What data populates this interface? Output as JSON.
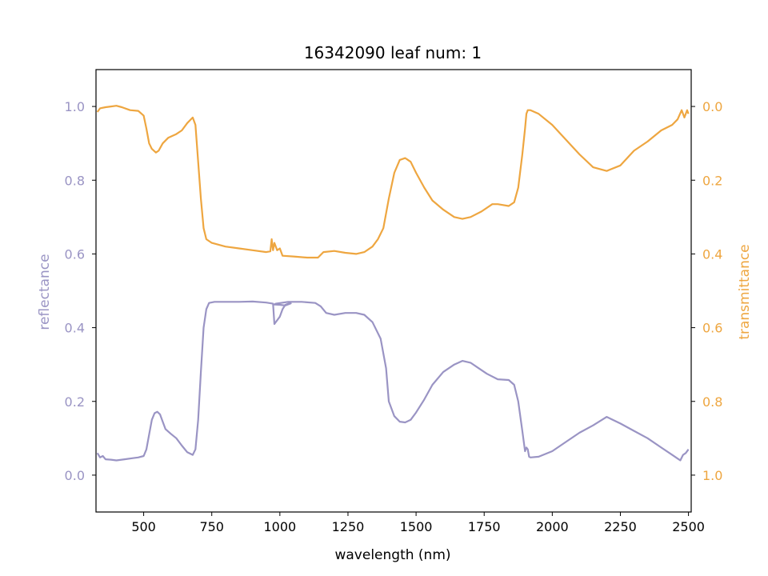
{
  "chart_data": {
    "type": "line",
    "title": "16342090 leaf num: 1",
    "xlabel": "wavelength (nm)",
    "ylabel_left": "reflectance",
    "ylabel_right": "transmittance",
    "xlim": [
      325,
      2510
    ],
    "ylim_left": [
      -0.1,
      1.1
    ],
    "ylim_right": [
      1.1,
      -0.1
    ],
    "right_axis_inverted": true,
    "grid": false,
    "legend": "none",
    "x_ticks": [
      500,
      750,
      1000,
      1250,
      1500,
      1750,
      2000,
      2250,
      2500
    ],
    "x_tick_labels": [
      "500",
      "750",
      "1000",
      "1250",
      "1500",
      "1750",
      "2000",
      "2250",
      "2500"
    ],
    "y_left_ticks": [
      0.0,
      0.2,
      0.4,
      0.6,
      0.8,
      1.0
    ],
    "y_left_tick_labels": [
      "0.0",
      "0.2",
      "0.4",
      "0.6",
      "0.8",
      "1.0"
    ],
    "y_right_ticks": [
      0.0,
      0.2,
      0.4,
      0.6,
      0.8,
      1.0
    ],
    "y_right_tick_labels": [
      "0.0",
      "0.2",
      "0.4",
      "0.6",
      "0.8",
      "1.0"
    ],
    "colors": {
      "reflectance": "#9a94c4",
      "transmittance": "#eea640",
      "axes": "#000000"
    },
    "series": [
      {
        "axis": "left",
        "color": "#9a94c4",
        "points": [
          [
            330,
            0.06
          ],
          [
            340,
            0.048
          ],
          [
            350,
            0.052
          ],
          [
            360,
            0.043
          ],
          [
            380,
            0.042
          ],
          [
            400,
            0.04
          ],
          [
            430,
            0.043
          ],
          [
            460,
            0.046
          ],
          [
            480,
            0.048
          ],
          [
            500,
            0.052
          ],
          [
            510,
            0.07
          ],
          [
            520,
            0.11
          ],
          [
            530,
            0.15
          ],
          [
            540,
            0.168
          ],
          [
            550,
            0.172
          ],
          [
            560,
            0.165
          ],
          [
            570,
            0.145
          ],
          [
            580,
            0.125
          ],
          [
            600,
            0.112
          ],
          [
            620,
            0.1
          ],
          [
            640,
            0.08
          ],
          [
            660,
            0.062
          ],
          [
            680,
            0.055
          ],
          [
            690,
            0.07
          ],
          [
            700,
            0.15
          ],
          [
            710,
            0.28
          ],
          [
            720,
            0.4
          ],
          [
            730,
            0.45
          ],
          [
            740,
            0.467
          ],
          [
            760,
            0.47
          ],
          [
            800,
            0.47
          ],
          [
            850,
            0.47
          ],
          [
            900,
            0.471
          ],
          [
            950,
            0.468
          ],
          [
            975,
            0.465
          ],
          [
            980,
            0.41
          ],
          [
            1000,
            0.43
          ],
          [
            1010,
            0.45
          ],
          [
            1020,
            0.462
          ],
          [
            1030,
            0.465
          ],
          [
            1040,
            0.466
          ],
          [
            1020,
            0.46
          ],
          [
            1000,
            0.462
          ],
          [
            980,
            0.463
          ],
          [
            985,
            0.465
          ],
          [
            1030,
            0.47
          ],
          [
            1080,
            0.47
          ],
          [
            1130,
            0.467
          ],
          [
            1150,
            0.458
          ],
          [
            1170,
            0.44
          ],
          [
            1200,
            0.435
          ],
          [
            1240,
            0.44
          ],
          [
            1280,
            0.44
          ],
          [
            1310,
            0.435
          ],
          [
            1340,
            0.415
          ],
          [
            1370,
            0.37
          ],
          [
            1390,
            0.29
          ],
          [
            1400,
            0.2
          ],
          [
            1420,
            0.16
          ],
          [
            1440,
            0.145
          ],
          [
            1460,
            0.143
          ],
          [
            1480,
            0.15
          ],
          [
            1500,
            0.17
          ],
          [
            1530,
            0.205
          ],
          [
            1560,
            0.245
          ],
          [
            1600,
            0.28
          ],
          [
            1640,
            0.3
          ],
          [
            1670,
            0.31
          ],
          [
            1700,
            0.305
          ],
          [
            1730,
            0.29
          ],
          [
            1760,
            0.275
          ],
          [
            1800,
            0.26
          ],
          [
            1840,
            0.258
          ],
          [
            1860,
            0.245
          ],
          [
            1875,
            0.2
          ],
          [
            1890,
            0.12
          ],
          [
            1900,
            0.065
          ],
          [
            1905,
            0.075
          ],
          [
            1910,
            0.07
          ],
          [
            1915,
            0.05
          ],
          [
            1920,
            0.048
          ],
          [
            1950,
            0.05
          ],
          [
            2000,
            0.065
          ],
          [
            2050,
            0.09
          ],
          [
            2100,
            0.115
          ],
          [
            2150,
            0.135
          ],
          [
            2200,
            0.158
          ],
          [
            2250,
            0.14
          ],
          [
            2300,
            0.12
          ],
          [
            2350,
            0.1
          ],
          [
            2400,
            0.075
          ],
          [
            2440,
            0.055
          ],
          [
            2460,
            0.045
          ],
          [
            2470,
            0.04
          ],
          [
            2480,
            0.055
          ],
          [
            2490,
            0.06
          ],
          [
            2500,
            0.07
          ]
        ]
      },
      {
        "axis": "right",
        "color": "#eea640",
        "points": [
          [
            330,
            0.015
          ],
          [
            340,
            0.005
          ],
          [
            360,
            0.002
          ],
          [
            380,
            0.0
          ],
          [
            400,
            -0.002
          ],
          [
            420,
            0.002
          ],
          [
            450,
            0.01
          ],
          [
            480,
            0.012
          ],
          [
            500,
            0.025
          ],
          [
            510,
            0.06
          ],
          [
            520,
            0.1
          ],
          [
            530,
            0.115
          ],
          [
            545,
            0.125
          ],
          [
            555,
            0.12
          ],
          [
            570,
            0.1
          ],
          [
            590,
            0.085
          ],
          [
            620,
            0.075
          ],
          [
            640,
            0.065
          ],
          [
            660,
            0.045
          ],
          [
            680,
            0.03
          ],
          [
            690,
            0.05
          ],
          [
            700,
            0.15
          ],
          [
            710,
            0.25
          ],
          [
            720,
            0.33
          ],
          [
            730,
            0.36
          ],
          [
            750,
            0.37
          ],
          [
            800,
            0.38
          ],
          [
            850,
            0.385
          ],
          [
            900,
            0.39
          ],
          [
            950,
            0.395
          ],
          [
            965,
            0.393
          ],
          [
            970,
            0.36
          ],
          [
            975,
            0.39
          ],
          [
            980,
            0.37
          ],
          [
            990,
            0.39
          ],
          [
            1000,
            0.385
          ],
          [
            1010,
            0.405
          ],
          [
            1050,
            0.407
          ],
          [
            1100,
            0.41
          ],
          [
            1140,
            0.41
          ],
          [
            1160,
            0.395
          ],
          [
            1200,
            0.392
          ],
          [
            1240,
            0.397
          ],
          [
            1280,
            0.4
          ],
          [
            1310,
            0.395
          ],
          [
            1340,
            0.38
          ],
          [
            1360,
            0.36
          ],
          [
            1380,
            0.33
          ],
          [
            1400,
            0.25
          ],
          [
            1420,
            0.18
          ],
          [
            1440,
            0.145
          ],
          [
            1460,
            0.14
          ],
          [
            1480,
            0.15
          ],
          [
            1500,
            0.18
          ],
          [
            1530,
            0.22
          ],
          [
            1560,
            0.255
          ],
          [
            1600,
            0.28
          ],
          [
            1640,
            0.3
          ],
          [
            1670,
            0.305
          ],
          [
            1700,
            0.3
          ],
          [
            1740,
            0.285
          ],
          [
            1780,
            0.265
          ],
          [
            1800,
            0.265
          ],
          [
            1840,
            0.27
          ],
          [
            1860,
            0.26
          ],
          [
            1875,
            0.22
          ],
          [
            1890,
            0.13
          ],
          [
            1900,
            0.06
          ],
          [
            1905,
            0.02
          ],
          [
            1910,
            0.01
          ],
          [
            1920,
            0.01
          ],
          [
            1950,
            0.02
          ],
          [
            2000,
            0.05
          ],
          [
            2050,
            0.09
          ],
          [
            2100,
            0.13
          ],
          [
            2150,
            0.165
          ],
          [
            2200,
            0.175
          ],
          [
            2250,
            0.16
          ],
          [
            2300,
            0.12
          ],
          [
            2350,
            0.095
          ],
          [
            2400,
            0.065
          ],
          [
            2440,
            0.05
          ],
          [
            2460,
            0.035
          ],
          [
            2475,
            0.01
          ],
          [
            2485,
            0.03
          ],
          [
            2495,
            0.01
          ],
          [
            2500,
            0.02
          ]
        ]
      }
    ]
  }
}
